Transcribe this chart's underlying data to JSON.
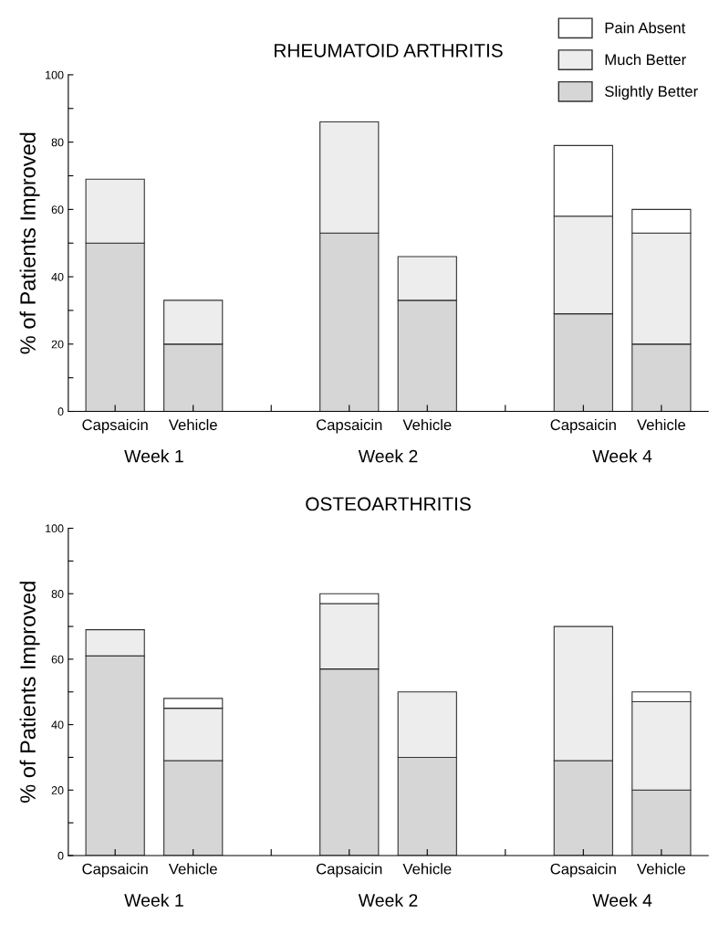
{
  "chart_data": [
    {
      "type": "bar",
      "title": "RHEUMATOID ARTHRITIS",
      "ylabel": "% of Patients Improved",
      "stacked": true,
      "categories": [
        "Capsaicin",
        "Vehicle",
        null,
        "Capsaicin",
        "Vehicle",
        null,
        "Capsaicin",
        "Vehicle"
      ],
      "series": [
        {
          "name": "Slightly Better",
          "color": "#d6d6d6",
          "values": [
            50,
            20,
            null,
            53,
            33,
            null,
            29,
            20
          ]
        },
        {
          "name": "Much Better",
          "color": "#ededed",
          "values": [
            19,
            13,
            null,
            33,
            13,
            null,
            29,
            33
          ]
        },
        {
          "name": "Pain Absent",
          "color": "#ffffff",
          "values": [
            null,
            null,
            null,
            null,
            null,
            null,
            21,
            7
          ]
        }
      ],
      "ylim": [
        0,
        100
      ],
      "yticks": [
        0,
        {
          "value": 10,
          "label": null
        },
        20,
        {
          "value": 30,
          "label": null
        },
        40,
        {
          "value": 50,
          "label": null
        },
        60,
        {
          "value": 70,
          "label": null
        },
        80,
        {
          "value": 90,
          "label": null
        },
        100
      ],
      "annotations": [
        "Week 1",
        "Week 2",
        "Week 4"
      ],
      "legend": "top right",
      "grid": false
    },
    {
      "type": "bar",
      "title": "OSTEOARTHRITIS",
      "ylabel": "% of Patients Improved",
      "stacked": true,
      "categories": [
        "Capsaicin",
        "Vehicle",
        null,
        "Capsaicin",
        "Vehicle",
        null,
        "Capsaicin",
        "Vehicle"
      ],
      "series": [
        {
          "color": "#d6d6d6",
          "values": [
            61,
            29,
            null,
            57,
            30,
            null,
            29,
            20
          ]
        },
        {
          "color": "#ededed",
          "values": [
            8,
            16,
            null,
            20,
            20,
            null,
            41,
            27
          ]
        },
        {
          "color": "#ffffff",
          "values": [
            null,
            3,
            null,
            3,
            null,
            null,
            null,
            3
          ]
        }
      ],
      "ylim": [
        0,
        100
      ],
      "yticks": [
        0,
        {
          "value": 10,
          "label": null
        },
        20,
        {
          "value": 30,
          "label": null
        },
        40,
        {
          "value": 50,
          "label": null
        },
        60,
        {
          "value": 70,
          "label": null
        },
        80,
        {
          "value": 90,
          "label": null
        },
        100
      ],
      "annotations": [
        "Week 1",
        "Week 2",
        "Week 4"
      ],
      "grid": false
    }
  ]
}
